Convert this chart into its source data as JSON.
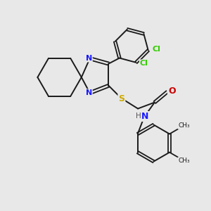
{
  "background_color": "#e8e8e8",
  "bond_color": "#1a1a1a",
  "N_color": "#1a1aff",
  "S_color": "#ccaa00",
  "O_color": "#cc0000",
  "Cl_color": "#33cc00",
  "H_color": "#555555",
  "C_color": "#1a1a1a",
  "figsize": [
    3.0,
    3.0
  ],
  "dpi": 100,
  "xlim": [
    0,
    10
  ],
  "ylim": [
    0,
    10
  ]
}
